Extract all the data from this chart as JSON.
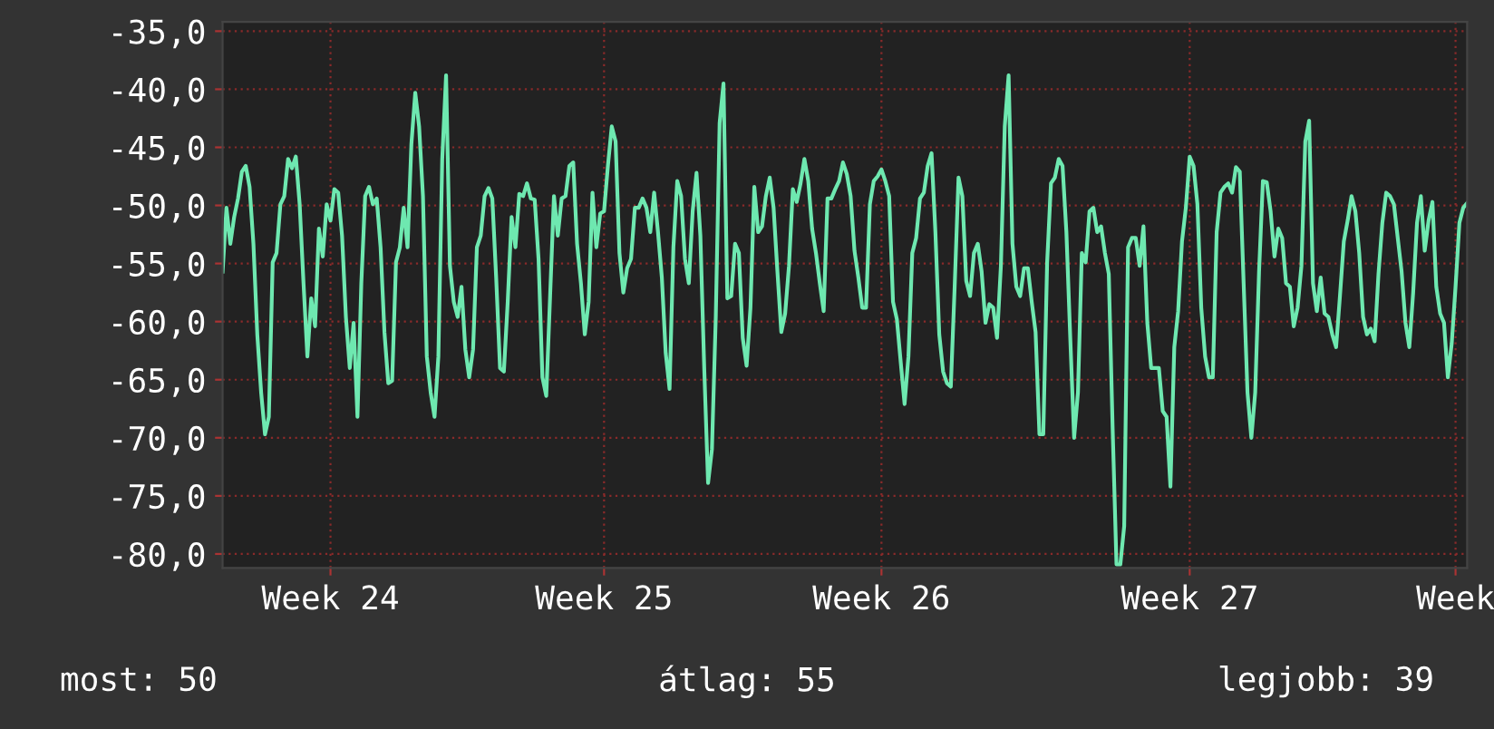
{
  "chart_data": {
    "type": "line",
    "categories": [
      null,
      null,
      null,
      null,
      null,
      null,
      null,
      null,
      null,
      null,
      null,
      null,
      null,
      null,
      null,
      null,
      null,
      null,
      null,
      null,
      null,
      null,
      null,
      null,
      null,
      null,
      null,
      null,
      "Week 24",
      null,
      null,
      null,
      null,
      null,
      null,
      null,
      null,
      null,
      null,
      null,
      null,
      null,
      null,
      null,
      null,
      null,
      null,
      null,
      null,
      null,
      null,
      null,
      null,
      null,
      null,
      null,
      null,
      null,
      null,
      null,
      null,
      null,
      null,
      null,
      null,
      null,
      null,
      null,
      null,
      null,
      null,
      null,
      null,
      null,
      null,
      null,
      null,
      null,
      null,
      null,
      null,
      null,
      null,
      null,
      null,
      null,
      null,
      null,
      null,
      null,
      null,
      null,
      null,
      null,
      null,
      null,
      null,
      null,
      null,
      "Week 25",
      null,
      null,
      null,
      null,
      null,
      null,
      null,
      null,
      null,
      null,
      null,
      null,
      null,
      null,
      null,
      null,
      null,
      null,
      null,
      null,
      null,
      null,
      null,
      null,
      null,
      null,
      null,
      null,
      null,
      null,
      null,
      null,
      null,
      null,
      null,
      null,
      null,
      null,
      null,
      null,
      null,
      null,
      null,
      null,
      null,
      null,
      null,
      null,
      null,
      null,
      null,
      null,
      null,
      null,
      null,
      null,
      null,
      null,
      null,
      null,
      null,
      null,
      null,
      null,
      null,
      null,
      null,
      null,
      null,
      null,
      null,
      "Week 26",
      null,
      null,
      null,
      null,
      null,
      null,
      null,
      null,
      null,
      null,
      null,
      null,
      null,
      null,
      null,
      null,
      null,
      null,
      null,
      null,
      null,
      null,
      null,
      null,
      null,
      null,
      null,
      null,
      null,
      null,
      null,
      null,
      null,
      null,
      null,
      null,
      null,
      null,
      null,
      null,
      null,
      null,
      null,
      null,
      null,
      null,
      null,
      null,
      null,
      null,
      null,
      null,
      null,
      null,
      null,
      null,
      null,
      null,
      null,
      null,
      null,
      null,
      null,
      null,
      null,
      null,
      null,
      null,
      null,
      null,
      null,
      null,
      null,
      null,
      null,
      null,
      null,
      null,
      null,
      "Week 27",
      null,
      null,
      null,
      null,
      null,
      null,
      null,
      null,
      null,
      null,
      null,
      null,
      null,
      null,
      null,
      null,
      null,
      null,
      null,
      null,
      null,
      null,
      null,
      null,
      null,
      null,
      null,
      null,
      null,
      null,
      null,
      null,
      null,
      null,
      null,
      null,
      null,
      null,
      null,
      null,
      null,
      null,
      null,
      null,
      null,
      null,
      null,
      null,
      null,
      null,
      null,
      null,
      null,
      null,
      null,
      null,
      null,
      null,
      null,
      null,
      null,
      null,
      null,
      null,
      null,
      null,
      null,
      null,
      "Week",
      null,
      null,
      null
    ],
    "series": [
      {
        "color": "#6ee8b0",
        "values": [
          -55.7,
          -50.2,
          -53.3,
          -51.0,
          -49.4,
          -47.1,
          -46.6,
          -48.4,
          -53.3,
          -61.1,
          -66.1,
          -69.7,
          -68.2,
          -54.9,
          -54.1,
          -49.9,
          -49.2,
          -46.0,
          -46.8,
          -45.8,
          -49.9,
          -56.7,
          -63.0,
          -58.0,
          -60.4,
          -52.0,
          -54.4,
          -49.9,
          -51.3,
          -48.6,
          -48.9,
          -52.6,
          -59.6,
          -64.0,
          -60.1,
          -68.2,
          -56.7,
          -49.2,
          -48.4,
          -49.9,
          -49.4,
          -53.6,
          -60.9,
          -65.3,
          -65.1,
          -54.9,
          -53.6,
          -50.2,
          -53.6,
          -44.7,
          -40.3,
          -43.2,
          -49.2,
          -63.0,
          -66.1,
          -68.2,
          -63.0,
          -46.0,
          -38.8,
          -55.2,
          -58.3,
          -59.6,
          -57.0,
          -62.4,
          -64.8,
          -62.4,
          -53.6,
          -52.6,
          -49.2,
          -48.5,
          -49.4,
          -56.2,
          -64.0,
          -64.3,
          -58.3,
          -51.0,
          -53.6,
          -49.0,
          -49.2,
          -48.1,
          -49.4,
          -49.5,
          -54.6,
          -64.8,
          -66.4,
          -57.8,
          -49.2,
          -52.6,
          -49.4,
          -49.2,
          -46.6,
          -46.3,
          -53.3,
          -56.7,
          -61.1,
          -58.3,
          -48.9,
          -53.6,
          -50.7,
          -50.5,
          -46.6,
          -43.2,
          -44.5,
          -54.1,
          -57.5,
          -55.4,
          -54.6,
          -50.2,
          -50.2,
          -49.4,
          -50.2,
          -52.3,
          -48.9,
          -52.3,
          -56.2,
          -62.7,
          -65.8,
          -53.6,
          -47.9,
          -49.2,
          -54.6,
          -56.7,
          -50.5,
          -47.2,
          -52.6,
          -64.0,
          -73.9,
          -71.0,
          -59.6,
          -42.9,
          -39.5,
          -58.0,
          -57.8,
          -53.3,
          -54.1,
          -61.4,
          -63.8,
          -58.8,
          -48.4,
          -52.3,
          -51.8,
          -49.2,
          -47.6,
          -50.2,
          -55.7,
          -60.9,
          -59.3,
          -55.2,
          -48.6,
          -49.7,
          -48.1,
          -46.0,
          -47.9,
          -52.0,
          -54.1,
          -56.7,
          -59.1,
          -49.4,
          -49.4,
          -48.6,
          -47.9,
          -46.3,
          -47.3,
          -49.2,
          -53.9,
          -56.2,
          -58.8,
          -58.8,
          -49.9,
          -47.9,
          -47.5,
          -46.9,
          -47.9,
          -49.2,
          -58.3,
          -59.8,
          -63.5,
          -67.1,
          -63.0,
          -54.1,
          -52.8,
          -49.4,
          -48.9,
          -46.6,
          -45.5,
          -52.3,
          -61.1,
          -64.3,
          -65.3,
          -65.6,
          -57.0,
          -47.6,
          -49.2,
          -56.5,
          -57.8,
          -54.1,
          -53.3,
          -55.7,
          -60.1,
          -58.5,
          -58.8,
          -61.4,
          -55.2,
          -43.2,
          -38.8,
          -53.3,
          -57.0,
          -57.8,
          -55.4,
          -55.4,
          -58.3,
          -60.9,
          -69.7,
          -69.7,
          -54.9,
          -48.1,
          -47.6,
          -46.0,
          -46.6,
          -52.3,
          -61.4,
          -70.0,
          -66.1,
          -54.1,
          -54.9,
          -50.5,
          -50.2,
          -52.3,
          -51.8,
          -54.1,
          -55.9,
          -69.2,
          -80.9,
          -80.9,
          -77.6,
          -53.6,
          -52.8,
          -52.8,
          -55.2,
          -51.8,
          -60.1,
          -64.0,
          -64.0,
          -64.0,
          -67.7,
          -68.2,
          -74.2,
          -62.2,
          -59.1,
          -53.1,
          -50.2,
          -45.8,
          -46.6,
          -49.9,
          -58.8,
          -63.0,
          -64.8,
          -64.8,
          -52.3,
          -48.9,
          -48.4,
          -48.1,
          -48.9,
          -46.7,
          -47.1,
          -56.7,
          -66.1,
          -70.0,
          -66.1,
          -55.7,
          -47.9,
          -48.0,
          -50.5,
          -54.4,
          -52.0,
          -52.8,
          -56.7,
          -57.0,
          -60.4,
          -58.8,
          -55.2,
          -44.5,
          -42.7,
          -56.7,
          -59.1,
          -56.2,
          -59.3,
          -59.6,
          -61.1,
          -62.2,
          -57.8,
          -53.1,
          -51.3,
          -49.2,
          -50.5,
          -54.1,
          -59.6,
          -61.1,
          -60.6,
          -61.7,
          -55.9,
          -51.5,
          -48.9,
          -49.2,
          -49.9,
          -52.8,
          -55.7,
          -60.1,
          -62.2,
          -57.5,
          -51.5,
          -49.2,
          -53.9,
          -51.3,
          -49.7,
          -57.0,
          -59.3,
          -60.1,
          -64.8,
          -61.9,
          -57.0,
          -51.5,
          -50.2,
          -49.8
        ]
      }
    ],
    "ylim": [
      -81.2,
      -34.2
    ],
    "yticks": [
      {
        "value": -80,
        "label": "-80,0"
      },
      {
        "value": -75,
        "label": "-75,0"
      },
      {
        "value": -70,
        "label": "-70,0"
      },
      {
        "value": -65,
        "label": "-65,0"
      },
      {
        "value": -60,
        "label": "-60,0"
      },
      {
        "value": -55,
        "label": "-55,0"
      },
      {
        "value": -50,
        "label": "-50,0"
      },
      {
        "value": -45,
        "label": "-45,0"
      },
      {
        "value": -40,
        "label": "-40,0"
      },
      {
        "value": -35,
        "label": "-35,0"
      }
    ],
    "grid": true,
    "legend": false,
    "annotations": [
      "most: 50",
      "átlag: 55",
      "legjobb: 39"
    ]
  }
}
